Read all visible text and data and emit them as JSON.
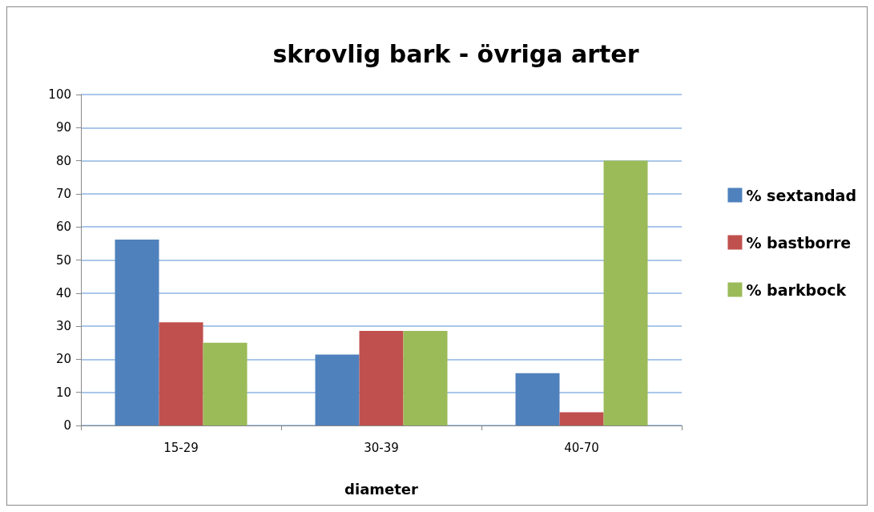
{
  "chart_data": {
    "type": "bar",
    "title": "skrovlig bark - övriga arter",
    "xlabel": "diameter",
    "categories": [
      "15-29",
      "30-39",
      "40-70"
    ],
    "series": [
      {
        "name": "% sextandad",
        "color": "#4f81bd",
        "values": [
          56.2,
          21.4,
          15.8
        ]
      },
      {
        "name": "% bastborre",
        "color": "#c0504d",
        "values": [
          31.2,
          28.6,
          4
        ]
      },
      {
        "name": "% barkbock",
        "color": "#9bbb59",
        "values": [
          25,
          28.6,
          80
        ]
      }
    ],
    "ylim": [
      0,
      100
    ],
    "yticks": [
      0,
      10,
      20,
      30,
      40,
      50,
      60,
      70,
      80,
      90,
      100
    ],
    "grid": "y",
    "legend": "right"
  }
}
